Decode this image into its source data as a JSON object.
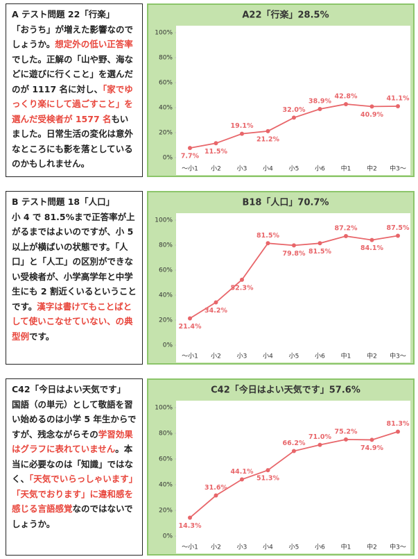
{
  "sections": [
    {
      "heading": "A テスト問題 22「行楽」",
      "runs": [
        {
          "text": "「おうち」が増えた影響なのでしょうか。"
        },
        {
          "text": "想定外の低い正答率",
          "emphasis": true
        },
        {
          "text": "でした。正解の「山や野、海などに遊びに行くこと」を選んだのが 1117 名に対し、"
        },
        {
          "text": "「家でゆっくり楽にして過ごすこと」を選んだ受検者が 1577 名",
          "emphasis": true
        },
        {
          "text": "もいました。日常生活の変化は意外なところにも影を落としているのかもしれません。"
        }
      ]
    },
    {
      "heading": "B テスト問題 18「人口」",
      "runs": [
        {
          "text": "小 4 で 81.5%まで正答率が上がるまではよいのですが、小 5 以上が横ばいの状態です。「人口」と「人工」の区別ができない受検者が、小学高学年と中学生にも 2 割近くいるということです。"
        },
        {
          "text": "漢字は書けてもことばとして使いこなせていない、の典型例",
          "emphasis": true
        },
        {
          "text": "です。"
        }
      ]
    },
    {
      "heading": "C42「今日はよい天気です」",
      "runs": [
        {
          "text": "国語（の単元）として敬語を習い始めるのは小学 5 年生からですが、残念ながらその"
        },
        {
          "text": "学習効果はグラフに表れていません",
          "emphasis": true
        },
        {
          "text": "。本当に必要なのは「知識」ではなく、"
        },
        {
          "text": "「天気でいらっしゃいます」「天気でおります」に違和感を感じる言語感覚",
          "emphasis": true
        },
        {
          "text": "なのではないでしょうか。"
        }
      ]
    }
  ],
  "chart_data": [
    {
      "type": "line",
      "title": "A22「行楽」28.5%",
      "categories": [
        "～小1",
        "小2",
        "小3",
        "小4",
        "小5",
        "小6",
        "中1",
        "中2",
        "中3～"
      ],
      "series": [
        {
          "color": "#e8666a",
          "values": [
            7.7,
            11.5,
            19.1,
            21.2,
            32.0,
            38.9,
            42.8,
            40.9,
            41.1
          ],
          "value_labels": [
            "7.7%",
            "11.5%",
            "19.1%",
            "21.2%",
            "32.0%",
            "38.9%",
            "42.8%",
            "40.9%",
            "41.1%"
          ]
        }
      ],
      "ylim": [
        0,
        100
      ],
      "yticks": [
        {
          "value": 0,
          "label": "0%"
        },
        {
          "value": 20,
          "label": "20%"
        },
        {
          "value": 40,
          "label": "40%"
        },
        {
          "value": 60,
          "label": "60%"
        },
        {
          "value": 80,
          "label": "80%"
        },
        {
          "value": 100,
          "label": "100%"
        }
      ]
    },
    {
      "type": "line",
      "title": "B18「人口」70.7%",
      "categories": [
        "～小1",
        "小2",
        "小3",
        "小4",
        "小5",
        "小6",
        "中1",
        "中2",
        "中3～"
      ],
      "series": [
        {
          "color": "#e8666a",
          "values": [
            21.4,
            34.2,
            52.3,
            81.5,
            79.8,
            81.5,
            87.2,
            84.1,
            87.5
          ],
          "value_labels": [
            "21.4%",
            "34.2%",
            "52.3%",
            "81.5%",
            "79.8%",
            "81.5%",
            "87.2%",
            "84.1%",
            "87.5%"
          ]
        }
      ],
      "ylim": [
        0,
        100
      ],
      "yticks": [
        {
          "value": 0,
          "label": "0%"
        },
        {
          "value": 20,
          "label": "20%"
        },
        {
          "value": 40,
          "label": "40%"
        },
        {
          "value": 60,
          "label": "60%"
        },
        {
          "value": 80,
          "label": "80%"
        },
        {
          "value": 100,
          "label": "100%"
        }
      ]
    },
    {
      "type": "line",
      "title": "C42「今日はよい天気です」57.6%",
      "categories": [
        "～小1",
        "小2",
        "小3",
        "小4",
        "小5",
        "小6",
        "中1",
        "中2",
        "中3～"
      ],
      "series": [
        {
          "color": "#e8666a",
          "values": [
            14.3,
            31.6,
            44.1,
            51.3,
            66.2,
            71.0,
            75.2,
            74.9,
            81.3
          ],
          "value_labels": [
            "14.3%",
            "31.6%",
            "44.1%",
            "51.3%",
            "66.2%",
            "71.0%",
            "75.2%",
            "74.9%",
            "81.3%"
          ]
        }
      ],
      "ylim": [
        0,
        100
      ],
      "yticks": [
        {
          "value": 0,
          "label": "0%"
        },
        {
          "value": 20,
          "label": "20%"
        },
        {
          "value": 40,
          "label": "40%"
        },
        {
          "value": 60,
          "label": "60%"
        },
        {
          "value": 80,
          "label": "80%"
        },
        {
          "value": 100,
          "label": "100%"
        }
      ]
    }
  ]
}
